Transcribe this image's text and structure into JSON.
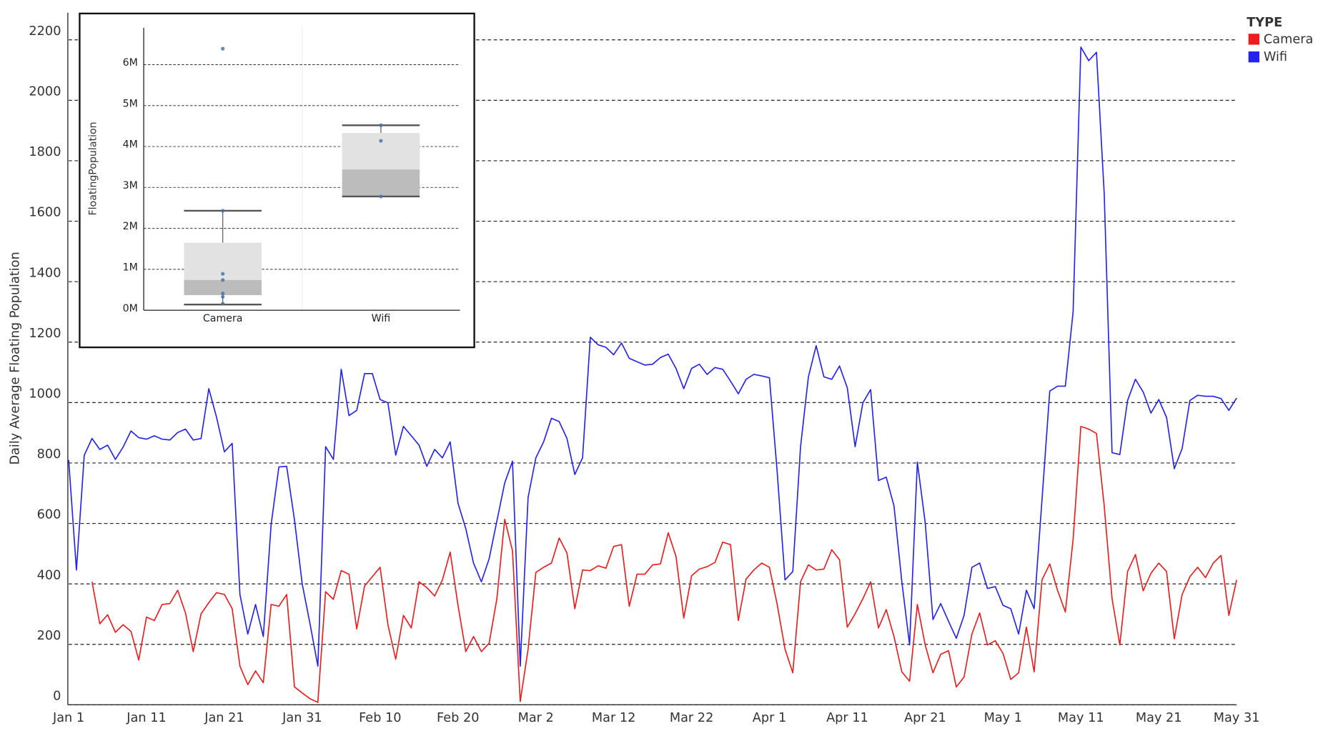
{
  "chart_data": [
    {
      "type": "line",
      "y_label": "Daily Average Floating Population",
      "x": [
        "Jan 1",
        "Jan 2",
        "Jan 3",
        "Jan 4",
        "Jan 5",
        "Jan 6",
        "Jan 7",
        "Jan 8",
        "Jan 9",
        "Jan 10",
        "Jan 11",
        "Jan 12",
        "Jan 13",
        "Jan 14",
        "Jan 15",
        "Jan 16",
        "Jan 17",
        "Jan 18",
        "Jan 19",
        "Jan 20",
        "Jan 21",
        "Jan 22",
        "Jan 23",
        "Jan 24",
        "Jan 25",
        "Jan 26",
        "Jan 27",
        "Jan 28",
        "Jan 29",
        "Jan 30",
        "Jan 31",
        "Feb 1",
        "Feb 2",
        "Feb 3",
        "Feb 4",
        "Feb 5",
        "Feb 6",
        "Feb 7",
        "Feb 8",
        "Feb 9",
        "Feb 10",
        "Feb 11",
        "Feb 12",
        "Feb 13",
        "Feb 14",
        "Feb 15",
        "Feb 16",
        "Feb 17",
        "Feb 18",
        "Feb 19",
        "Feb 20",
        "Feb 21",
        "Feb 22",
        "Feb 23",
        "Feb 24",
        "Feb 25",
        "Feb 26",
        "Feb 27",
        "Feb 28",
        "Mar 1",
        "Mar 2",
        "Mar 3",
        "Mar 4",
        "Mar 5",
        "Mar 6",
        "Mar 7",
        "Mar 8",
        "Mar 9",
        "Mar 10",
        "Mar 11",
        "Mar 12",
        "Mar 13",
        "Mar 14",
        "Mar 15",
        "Mar 16",
        "Mar 17",
        "Mar 18",
        "Mar 19",
        "Mar 20",
        "Mar 21",
        "Mar 22",
        "Mar 23",
        "Mar 24",
        "Mar 25",
        "Mar 26",
        "Mar 27",
        "Mar 28",
        "Mar 29",
        "Mar 30",
        "Mar 31",
        "Apr 1",
        "Apr 2",
        "Apr 3",
        "Apr 4",
        "Apr 5",
        "Apr 6",
        "Apr 7",
        "Apr 8",
        "Apr 9",
        "Apr 10",
        "Apr 11",
        "Apr 12",
        "Apr 13",
        "Apr 14",
        "Apr 15",
        "Apr 16",
        "Apr 17",
        "Apr 18",
        "Apr 19",
        "Apr 20",
        "Apr 21",
        "Apr 22",
        "Apr 23",
        "Apr 24",
        "Apr 25",
        "Apr 26",
        "Apr 27",
        "Apr 28",
        "Apr 29",
        "Apr 30",
        "May 1",
        "May 2",
        "May 3",
        "May 4",
        "May 5",
        "May 6",
        "May 7",
        "May 8",
        "May 9",
        "May 10",
        "May 11",
        "May 12",
        "May 13",
        "May 14",
        "May 15",
        "May 16",
        "May 17",
        "May 18",
        "May 19",
        "May 20",
        "May 21",
        "May 22",
        "May 23",
        "May 24",
        "May 25",
        "May 26",
        "May 27",
        "May 28",
        "May 29",
        "May 30",
        "May 31"
      ],
      "xticks": [
        "Jan 1",
        "Jan 11",
        "Jan 21",
        "Jan 31",
        "Feb 10",
        "Feb 20",
        "Mar 2",
        "Mar 12",
        "Mar 22",
        "Apr 1",
        "Apr 11",
        "Apr 21",
        "May 1",
        "May 11",
        "May 21",
        "May 31"
      ],
      "ylim": [
        0,
        2290
      ],
      "yticks": [
        0,
        200,
        400,
        600,
        800,
        1000,
        1200,
        1400,
        1600,
        1800,
        2000,
        2200
      ],
      "grid": true,
      "legend": {
        "title": "TYPE",
        "position": "top-right"
      },
      "series": [
        {
          "name": "Camera",
          "color": "#ee1c1c",
          "values": [
            null,
            null,
            null,
            407,
            268,
            298,
            240,
            265,
            243,
            148,
            290,
            279,
            332,
            335,
            379,
            304,
            176,
            301,
            338,
            371,
            365,
            318,
            128,
            67,
            112,
            73,
            332,
            326,
            365,
            59,
            39,
            20,
            8,
            374,
            349,
            444,
            432,
            251,
            393,
            424,
            455,
            265,
            151,
            296,
            254,
            407,
            388,
            360,
            413,
            505,
            329,
            176,
            226,
            176,
            204,
            351,
            614,
            510,
            11,
            184,
            438,
            455,
            469,
            552,
            502,
            318,
            446,
            444,
            460,
            452,
            524,
            530,
            326,
            432,
            432,
            463,
            466,
            569,
            491,
            287,
            427,
            449,
            457,
            471,
            538,
            530,
            279,
            416,
            446,
            469,
            455,
            332,
            184,
            106,
            407,
            463,
            446,
            449,
            513,
            480,
            257,
            301,
            351,
            407,
            254,
            315,
            226,
            109,
            78,
            332,
            198,
            106,
            167,
            179,
            59,
            92,
            234,
            304,
            198,
            212,
            170,
            84,
            106,
            257,
            109,
            413,
            466,
            379,
            307,
            547,
            921,
            912,
            898,
            658,
            351,
            198,
            441,
            497,
            377,
            435,
            469,
            441,
            218,
            365,
            424,
            455,
            421,
            469,
            494,
            296,
            413
          ]
        },
        {
          "name": "Wifi",
          "color": "#2323f0",
          "values": [
            810,
            446,
            826,
            881,
            845,
            859,
            812,
            853,
            906,
            884,
            879,
            890,
            879,
            876,
            901,
            912,
            876,
            881,
            1046,
            951,
            837,
            865,
            365,
            234,
            332,
            226,
            597,
            787,
            789,
            611,
            399,
            268,
            128,
            854,
            812,
            1110,
            957,
            974,
            1096,
            1096,
            1010,
            999,
            826,
            921,
            890,
            859,
            789,
            845,
            817,
            870,
            667,
            583,
            469,
            407,
            483,
            608,
            734,
            806,
            128,
            686,
            817,
            870,
            948,
            937,
            881,
            762,
            817,
            1216,
            1191,
            1183,
            1158,
            1197,
            1146,
            1135,
            1124,
            1127,
            1149,
            1160,
            1113,
            1046,
            1113,
            1127,
            1093,
            1116,
            1110,
            1071,
            1029,
            1077,
            1093,
            1088,
            1082,
            770,
            413,
            441,
            854,
            1085,
            1188,
            1085,
            1077,
            1121,
            1049,
            854,
            999,
            1043,
            742,
            753,
            658,
            407,
            198,
            803,
            603,
            282,
            335,
            276,
            220,
            296,
            455,
            469,
            385,
            391,
            329,
            318,
            234,
            379,
            318,
            678,
            1038,
            1054,
            1054,
            1300,
            2176,
            2131,
            2159,
            1690,
            834,
            828,
            1007,
            1077,
            1035,
            965,
            1010,
            951,
            781,
            848,
            1007,
            1024,
            1021,
            1021,
            1013,
            974,
            1015
          ]
        }
      ]
    },
    {
      "type": "box",
      "y_label": "FloatingPopulation",
      "categories": [
        "Camera",
        "Wifi"
      ],
      "ylim": [
        0,
        6900000
      ],
      "yticks": [
        {
          "value": 0,
          "label": "0M"
        },
        {
          "value": 1000000,
          "label": "1M"
        },
        {
          "value": 2000000,
          "label": "2M"
        },
        {
          "value": 3000000,
          "label": "3M"
        },
        {
          "value": 4000000,
          "label": "4M"
        },
        {
          "value": 5000000,
          "label": "5M"
        },
        {
          "value": 6000000,
          "label": "6M"
        }
      ],
      "grid": true,
      "boxes": [
        {
          "whislo": 140000,
          "q1": 370000,
          "med": 740000,
          "q3": 1650000,
          "whishi": 2430000,
          "points": [
            6390000,
            2430000,
            890000,
            740000,
            410000,
            330000,
            160000
          ]
        },
        {
          "whislo": 2780000,
          "q1": 2780000,
          "med": 3440000,
          "q3": 4330000,
          "whishi": 4520000,
          "points": [
            4520000,
            4140000,
            2780000
          ]
        }
      ]
    }
  ]
}
